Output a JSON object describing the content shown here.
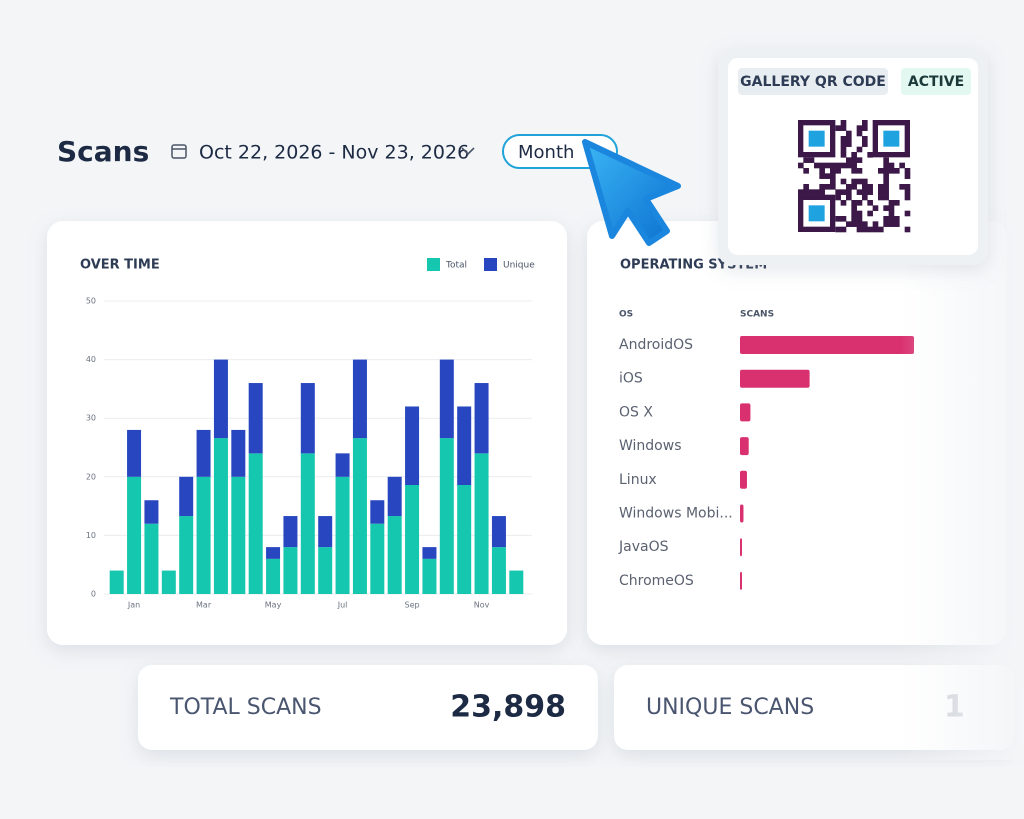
{
  "header": {
    "title": "Scans",
    "date_range": "Oct 22, 2026 - Nov 23, 2026",
    "period": "Month"
  },
  "qr_card": {
    "label": "GALLERY QR CODE",
    "status": "ACTIVE"
  },
  "chart_data": [
    {
      "type": "bar",
      "stacked": true,
      "title": "OVER TIME",
      "categories": [
        null,
        "Jan",
        null,
        null,
        null,
        "Mar",
        null,
        null,
        null,
        "May",
        null,
        null,
        null,
        "Jul",
        null,
        null,
        null,
        "Sep",
        null,
        null,
        null,
        "Nov",
        null,
        null
      ],
      "series": [
        {
          "name": "Total",
          "color": "#15c7ae",
          "values": [
            4,
            20,
            12,
            4,
            13.3,
            20,
            26.6,
            20,
            24,
            6,
            8,
            24,
            8,
            20,
            26.6,
            12,
            13.3,
            18.6,
            6,
            26.6,
            18.6,
            24,
            8,
            4
          ]
        },
        {
          "name": "Unique",
          "color": "#2746bf",
          "values": [
            0,
            8,
            4,
            0,
            6.7,
            8,
            13.4,
            8,
            12,
            2,
            5.3,
            12,
            5.3,
            4,
            13.4,
            4,
            6.7,
            13.4,
            2,
            13.4,
            13.4,
            12,
            5.3,
            0
          ]
        }
      ],
      "ylim": [
        0,
        50
      ],
      "yticks": [
        0,
        10,
        20,
        30,
        40,
        50
      ],
      "grid": true,
      "legend": "top-right"
    },
    {
      "type": "hbar",
      "title": "OPERATING SYSTEM",
      "category_header": "OS",
      "value_header": "SCANS",
      "categories": [
        "AndroidOS",
        "iOS",
        "OS X",
        "Windows",
        "Linux",
        "Windows Mobi...",
        "JavaOS",
        "ChromeOS"
      ],
      "values": [
        100,
        40,
        6,
        5,
        4,
        2,
        1,
        1
      ],
      "color": "#d9306f"
    }
  ],
  "stats": [
    {
      "label": "TOTAL SCANS",
      "value": "23,898"
    },
    {
      "label": "UNIQUE SCANS",
      "value": "1"
    }
  ]
}
